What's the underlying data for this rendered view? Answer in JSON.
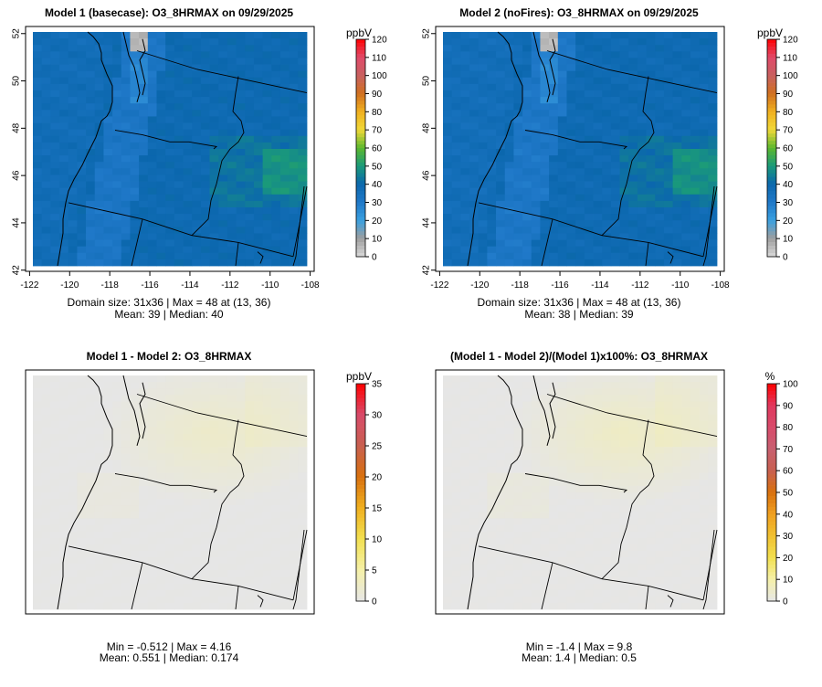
{
  "figure": {
    "bg": "#ffffff"
  },
  "chart_data": [
    {
      "type": "heatmap",
      "title": "Model 1 (basecase): O3_8HRMAX on 09/29/2025",
      "x_ticks": [
        "-122",
        "-120",
        "-118",
        "-116",
        "-114",
        "-112",
        "-110",
        "-108"
      ],
      "x_tick_values": [
        -122,
        -120,
        -118,
        -116,
        -114,
        -112,
        -110,
        -108
      ],
      "y_ticks": [
        "42",
        "44",
        "46",
        "48",
        "50",
        "52"
      ],
      "y_tick_values": [
        42,
        44,
        46,
        48,
        50,
        52
      ],
      "xlim": [
        -122.2,
        -107.8
      ],
      "ylim": [
        41.95,
        52.3
      ],
      "colorbar": {
        "unit": "ppbV",
        "range": [
          0,
          120
        ],
        "tick_labels": [
          "0",
          "10",
          "20",
          "30",
          "40",
          "50",
          "60",
          "70",
          "80",
          "90",
          "100",
          "110",
          "120"
        ],
        "stops": [
          "#d9d9d9",
          "#9e9e9e",
          "#3aa0e0",
          "#1f78c8",
          "#0b67ad",
          "#1a9a7a",
          "#5cb82e",
          "#f0d838",
          "#f0b020",
          "#d07020",
          "#c86060",
          "#e04a6a",
          "#ff0000"
        ]
      },
      "field_mode": "abs",
      "field_base": 38.5,
      "stats": [
        "Domain size: 31x36 | Max = 48 at (13, 36)",
        "Mean: 39 |  Median: 40"
      ]
    },
    {
      "type": "heatmap",
      "title": "Model 2 (noFires): O3_8HRMAX on 09/29/2025",
      "x_ticks": [
        "-122",
        "-120",
        "-118",
        "-116",
        "-114",
        "-112",
        "-110",
        "-108"
      ],
      "x_tick_values": [
        -122,
        -120,
        -118,
        -116,
        -114,
        -112,
        -110,
        -108
      ],
      "y_ticks": [
        "42",
        "44",
        "46",
        "48",
        "50",
        "52"
      ],
      "y_tick_values": [
        42,
        44,
        46,
        48,
        50,
        52
      ],
      "xlim": [
        -122.2,
        -107.8
      ],
      "ylim": [
        41.95,
        52.3
      ],
      "colorbar": {
        "unit": "ppbV",
        "range": [
          0,
          120
        ],
        "tick_labels": [
          "0",
          "10",
          "20",
          "30",
          "40",
          "50",
          "60",
          "70",
          "80",
          "90",
          "100",
          "110",
          "120"
        ],
        "stops": [
          "#d9d9d9",
          "#9e9e9e",
          "#3aa0e0",
          "#1f78c8",
          "#0b67ad",
          "#1a9a7a",
          "#5cb82e",
          "#f0d838",
          "#f0b020",
          "#d07020",
          "#c86060",
          "#e04a6a",
          "#ff0000"
        ]
      },
      "field_mode": "abs",
      "field_base": 38.0,
      "stats": [
        "Domain size: 31x36 | Max = 48 at (13, 36)",
        "Mean: 38 |  Median: 39"
      ]
    },
    {
      "type": "heatmap",
      "title": "Model 1 - Model 2: O3_8HRMAX",
      "x_ticks": [],
      "x_tick_values": [],
      "y_ticks": [],
      "y_tick_values": [],
      "xlim": [
        -122.2,
        -107.8
      ],
      "ylim": [
        41.95,
        52.3
      ],
      "colorbar": {
        "unit": "ppbV",
        "range": [
          0,
          35
        ],
        "tick_labels": [
          "0",
          "5",
          "10",
          "15",
          "20",
          "25",
          "30",
          "35"
        ],
        "stops": [
          "#e6e6e6",
          "#f5f0a8",
          "#f2e050",
          "#f0b020",
          "#d8700e",
          "#c86050",
          "#d84a6a",
          "#ff0000"
        ]
      },
      "field_mode": "diff",
      "field_scale": 4.16,
      "stats": [
        "Min = -0.512 | Max = 4.16",
        "Mean: 0.551 |  Median: 0.174"
      ]
    },
    {
      "type": "heatmap",
      "title": "(Model 1 - Model 2)/(Model 1)x100%: O3_8HRMAX",
      "x_ticks": [],
      "x_tick_values": [],
      "y_ticks": [],
      "y_tick_values": [],
      "xlim": [
        -122.2,
        -107.8
      ],
      "ylim": [
        41.95,
        52.3
      ],
      "colorbar": {
        "unit": "%",
        "range": [
          0,
          100
        ],
        "tick_labels": [
          "0",
          "10",
          "20",
          "30",
          "40",
          "50",
          "60",
          "70",
          "80",
          "90",
          "100"
        ],
        "stops": [
          "#e6e6e6",
          "#f5f0a8",
          "#f2e050",
          "#f0c030",
          "#f0a020",
          "#d8700e",
          "#c86050",
          "#c86070",
          "#d84a6a",
          "#e0385e",
          "#ff0000"
        ]
      },
      "field_mode": "diff",
      "field_scale": 9.8,
      "stats": [
        "Min = -1.4 | Max = 9.8",
        "Mean: 1.4 |  Median: 0.5"
      ]
    }
  ]
}
